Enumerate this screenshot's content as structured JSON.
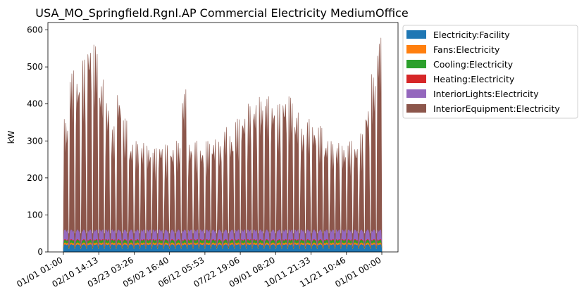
{
  "chart_data": {
    "type": "area",
    "title": "USA_MO_Springfield.Rgnl.AP Commercial Electricity MediumOffice",
    "xlabel": "",
    "ylabel": "kW",
    "ylim": [
      0,
      620
    ],
    "yticks": [
      0,
      100,
      200,
      300,
      400,
      500,
      600
    ],
    "xtick_labels": [
      "01/01 01:00",
      "02/10 14:13",
      "03/23 03:26",
      "05/02 16:40",
      "06/12 05:53",
      "07/22 19:06",
      "09/01 08:20",
      "10/11 21:33",
      "11/21 10:46",
      "01/01 00:00"
    ],
    "grid": false,
    "legend_position": "outside right, top",
    "series": [
      {
        "name": "Electricity:Facility",
        "color": "#1f77b4",
        "weekday_peak": 20,
        "weekend_base": 8
      },
      {
        "name": "Fans:Electricity",
        "color": "#ff7f0e",
        "weekday_peak": 25,
        "weekend_base": 10
      },
      {
        "name": "Cooling:Electricity",
        "color": "#2ca02c",
        "weekday_peak": 32,
        "weekend_base": 12
      },
      {
        "name": "Heating:Electricity",
        "color": "#d62728",
        "weekday_peak": 34,
        "weekend_base": 14
      },
      {
        "name": "InteriorLights:Electricity",
        "color": "#9467bd",
        "weekday_peak": 60,
        "weekend_base": 22
      },
      {
        "name": "InteriorEquipment:Electricity",
        "color": "#8c564b",
        "weekly_peaks": [
          360,
          490,
          480,
          520,
          580,
          560,
          470,
          410,
          340,
          440,
          360,
          300,
          300,
          300,
          290,
          280,
          300,
          290,
          290,
          300,
          440,
          300,
          300,
          290,
          300,
          310,
          300,
          340,
          320,
          360,
          380,
          400,
          410,
          420,
          420,
          410,
          400,
          430,
          420,
          380,
          340,
          360,
          350,
          340,
          310,
          300,
          300,
          290,
          300,
          300,
          320,
          400,
          480,
          580
        ],
        "weekend_base": 50
      }
    ]
  }
}
